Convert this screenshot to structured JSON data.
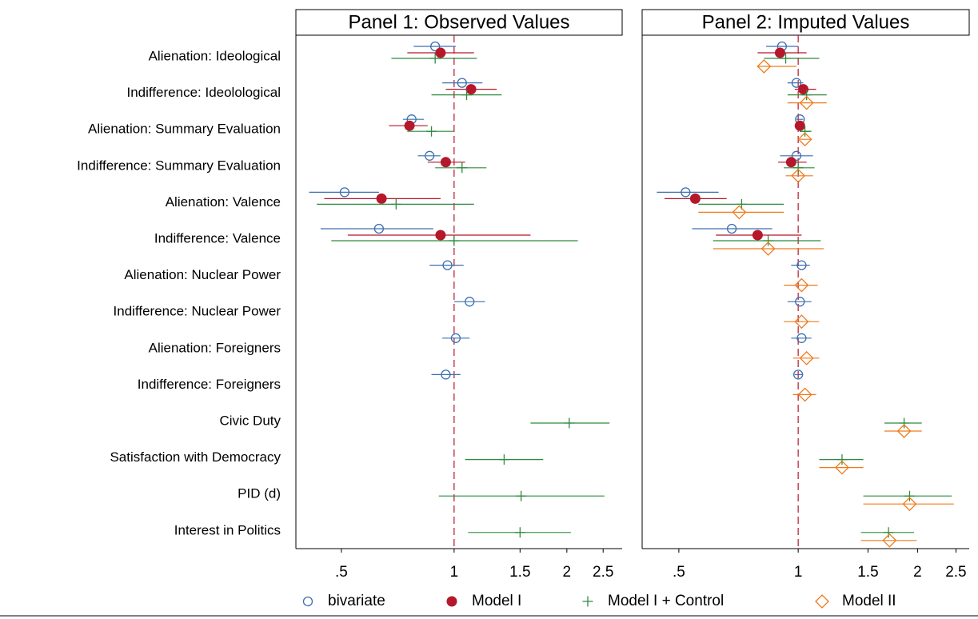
{
  "chart_data": {
    "type": "coefplot",
    "log_x": true,
    "reference_line": 1,
    "categories": [
      "Alienation: Ideological",
      "Indifference: Ideolological",
      "Alienation: Summary Evaluation",
      "Indifference: Summary Evaluation",
      "Alienation: Valence",
      "Indifference: Valence",
      "Alienation: Nuclear Power",
      "Indifference: Nuclear Power",
      "Alienation: Foreigners",
      "Indifference: Foreigners",
      "Civic Duty",
      "Satisfaction with Democracy",
      "PID (d)",
      "Interest in Politics"
    ],
    "series": [
      {
        "name": "bivariate",
        "color": "#3a6fb0",
        "marker": "circle"
      },
      {
        "name": "Model I",
        "color": "#b5172b",
        "marker": "dot"
      },
      {
        "name": "Model I + Control",
        "color": "#2e8b3e",
        "marker": "plus"
      },
      {
        "name": "Model II",
        "color": "#f07a1a",
        "marker": "diamond"
      }
    ],
    "panels": [
      {
        "title": "Panel 1: Observed Values",
        "xlim": [
          0.378,
          2.81
        ],
        "xticks": [
          {
            "value": 0.5,
            "label": ".5"
          },
          1,
          1.5,
          2,
          2.5
        ],
        "estimates": [
          {
            "values": [
              0.89,
              1.05,
              0.77,
              0.86,
              0.51,
              0.63,
              0.96,
              1.1,
              1.01,
              0.95,
              null,
              null,
              null,
              null
            ],
            "low": [
              0.78,
              0.93,
              0.73,
              0.8,
              0.41,
              0.44,
              0.86,
              1.0,
              0.93,
              0.87,
              null,
              null,
              null,
              null
            ],
            "high": [
              1.01,
              1.19,
              0.83,
              0.92,
              0.63,
              0.88,
              1.06,
              1.21,
              1.1,
              1.04,
              null,
              null,
              null,
              null
            ]
          },
          {
            "values": [
              0.92,
              1.11,
              0.76,
              0.95,
              0.64,
              0.92,
              null,
              null,
              null,
              null,
              null,
              null,
              null,
              null
            ],
            "low": [
              0.75,
              0.95,
              0.67,
              0.85,
              0.45,
              0.52,
              null,
              null,
              null,
              null,
              null,
              null,
              null,
              null
            ],
            "high": [
              1.13,
              1.3,
              0.85,
              1.07,
              0.92,
              1.6,
              null,
              null,
              null,
              null,
              null,
              null,
              null,
              null
            ]
          },
          {
            "values": [
              0.89,
              1.08,
              0.87,
              1.05,
              0.7,
              1.0,
              null,
              null,
              null,
              null,
              2.03,
              1.36,
              1.51,
              1.5
            ],
            "low": [
              0.68,
              0.87,
              0.75,
              0.89,
              0.43,
              0.47,
              null,
              null,
              null,
              null,
              1.6,
              1.07,
              0.91,
              1.09
            ],
            "high": [
              1.15,
              1.34,
              1.0,
              1.22,
              1.13,
              2.14,
              null,
              null,
              null,
              null,
              2.6,
              1.73,
              2.52,
              2.05
            ]
          },
          {
            "values": [
              null,
              null,
              null,
              null,
              null,
              null,
              null,
              null,
              null,
              null,
              null,
              null,
              null,
              null
            ],
            "low": [
              null,
              null,
              null,
              null,
              null,
              null,
              null,
              null,
              null,
              null,
              null,
              null,
              null,
              null
            ],
            "high": [
              null,
              null,
              null,
              null,
              null,
              null,
              null,
              null,
              null,
              null,
              null,
              null,
              null,
              null
            ]
          }
        ]
      },
      {
        "title": "Panel 2: Imputed Values",
        "xlim": [
          0.404,
          2.7
        ],
        "xticks": [
          {
            "value": 0.5,
            "label": ".5"
          },
          1,
          1.5,
          2,
          2.5
        ],
        "estimates": [
          {
            "values": [
              0.91,
              0.99,
              1.01,
              0.99,
              0.52,
              0.68,
              1.02,
              1.01,
              1.02,
              1.0,
              null,
              null,
              null,
              null
            ],
            "low": [
              0.83,
              0.94,
              0.99,
              0.9,
              0.44,
              0.54,
              0.96,
              0.94,
              0.96,
              0.98,
              null,
              null,
              null,
              null
            ],
            "high": [
              1.0,
              1.03,
              1.03,
              1.09,
              0.63,
              0.86,
              1.07,
              1.08,
              1.08,
              1.03,
              null,
              null,
              null,
              null
            ]
          },
          {
            "values": [
              0.9,
              1.03,
              1.01,
              0.96,
              0.55,
              0.79,
              null,
              null,
              null,
              null,
              null,
              null,
              null,
              null
            ],
            "low": [
              0.79,
              0.98,
              0.98,
              0.89,
              0.46,
              0.62,
              null,
              null,
              null,
              null,
              null,
              null,
              null,
              null
            ],
            "high": [
              1.05,
              1.11,
              1.04,
              1.05,
              0.66,
              1.02,
              null,
              null,
              null,
              null,
              null,
              null,
              null,
              null
            ]
          },
          {
            "values": [
              0.93,
              1.05,
              1.04,
              1.0,
              0.72,
              0.84,
              null,
              null,
              null,
              null,
              1.85,
              1.29,
              1.91,
              1.69
            ],
            "low": [
              0.82,
              0.94,
              1.01,
              0.92,
              0.56,
              0.61,
              null,
              null,
              null,
              null,
              1.65,
              1.13,
              1.46,
              1.44
            ],
            "high": [
              1.13,
              1.18,
              1.08,
              1.1,
              0.92,
              1.14,
              null,
              null,
              null,
              null,
              2.05,
              1.46,
              2.44,
              1.96
            ]
          },
          {
            "values": [
              0.82,
              1.05,
              1.04,
              1.0,
              0.71,
              0.84,
              1.02,
              1.02,
              1.05,
              1.04,
              1.85,
              1.29,
              1.91,
              1.7
            ],
            "low": [
              0.79,
              0.94,
              1.01,
              0.93,
              0.56,
              0.61,
              0.92,
              0.92,
              0.97,
              0.97,
              1.65,
              1.13,
              1.46,
              1.44
            ],
            "high": [
              0.99,
              1.18,
              1.08,
              1.09,
              0.92,
              1.16,
              1.12,
              1.13,
              1.13,
              1.11,
              2.05,
              1.46,
              2.47,
              1.99
            ]
          }
        ]
      }
    ]
  }
}
